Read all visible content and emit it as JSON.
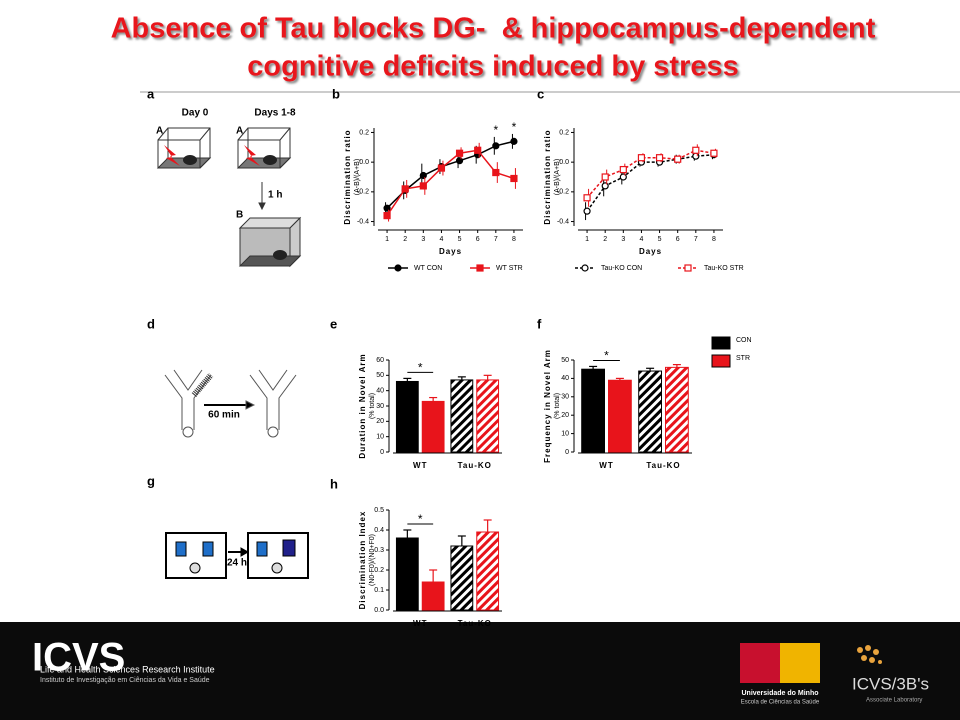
{
  "title": [
    "Absence of Tau blocks DG-  & hippocampus-dependent",
    "cognitive deficits induced by stress"
  ],
  "panels": [
    "a",
    "b",
    "c",
    "d",
    "e",
    "f",
    "g",
    "h"
  ],
  "diagrams": {
    "day0": "Day 0",
    "days": "Days 1-8",
    "ctxA1": "A",
    "ctxA2": "A",
    "ctxB": "B",
    "delay1": "1 h",
    "delay2": "60 min",
    "delay3": "24 h"
  },
  "footer": {
    "logo": "ICVS",
    "institute": "Life and Health Sciences Research Institute",
    "institute_pt": "Instituto de Investigação em Ciências da Vida e Saúde",
    "university": "Universidade do Minho",
    "school": "Escola de Ciências da Saúde",
    "lab": "ICVS/3B's",
    "lab_note": "Associate Laboratory"
  },
  "chart_data": [
    {
      "type": "line",
      "y_label": [
        "Discrimination ratio",
        "(A-B)/(A+B)"
      ],
      "x_label": "Days",
      "x": [
        1,
        2,
        3,
        4,
        5,
        6,
        7,
        8
      ],
      "xlim": [
        0.5,
        8.5
      ],
      "ylim": [
        -0.43,
        0.23
      ],
      "yticks": [
        -0.4,
        -0.2,
        {
          "value": 0,
          "label": "0.0"
        },
        0.2
      ],
      "series": [
        {
          "name": "WT CON",
          "color": "#000000",
          "marker": "circle",
          "dashed": false,
          "values": [
            -0.31,
            -0.19,
            -0.09,
            -0.03,
            0.01,
            0.05,
            0.11,
            0.14
          ],
          "errors": [
            0.04,
            0.06,
            0.08,
            0.05,
            0.05,
            0.06,
            0.06,
            0.05
          ]
        },
        {
          "name": "WT STR",
          "color": "#e8141b",
          "marker": "square",
          "dashed": false,
          "values": [
            -0.36,
            -0.18,
            -0.16,
            -0.04,
            0.06,
            0.08,
            -0.07,
            -0.11
          ],
          "errors": [
            0.04,
            0.06,
            0.06,
            0.05,
            0.04,
            0.05,
            0.07,
            0.07
          ]
        }
      ],
      "annotations": [
        {
          "text": "*",
          "x": 7
        },
        {
          "text": "*",
          "x": 8
        }
      ]
    },
    {
      "type": "line",
      "y_label": [
        "Discrimination ratio",
        "(A-B)/(A+B)"
      ],
      "x_label": "Days",
      "x": [
        1,
        2,
        3,
        4,
        5,
        6,
        7,
        8
      ],
      "xlim": [
        0.5,
        8.5
      ],
      "ylim": [
        -0.43,
        0.23
      ],
      "yticks": [
        -0.4,
        -0.2,
        {
          "value": 0,
          "label": "0.0"
        },
        0.2
      ],
      "series": [
        {
          "name": "Tau-KO CON",
          "color": "#000000",
          "marker": "circle",
          "dashed": true,
          "values": [
            -0.33,
            -0.16,
            -0.1,
            0.0,
            0.0,
            0.02,
            0.04,
            0.05
          ],
          "errors": [
            0.06,
            0.07,
            0.05,
            0.03,
            0.03,
            0.03,
            0.03,
            0.03
          ]
        },
        {
          "name": "Tau-KO STR",
          "color": "#e8141b",
          "marker": "square",
          "dashed": true,
          "values": [
            -0.24,
            -0.1,
            -0.05,
            0.03,
            0.03,
            0.02,
            0.08,
            0.06
          ],
          "errors": [
            0.06,
            0.05,
            0.04,
            0.03,
            0.03,
            0.03,
            0.04,
            0.03
          ]
        }
      ],
      "annotations": []
    },
    {
      "type": "bar",
      "y_label": [
        "Duration in Novel Arm",
        "(% total)"
      ],
      "categories": [
        "WT",
        "Tau-KO"
      ],
      "hatch": [
        false,
        true
      ],
      "ylim": [
        0,
        60
      ],
      "yticks": [
        0,
        10,
        20,
        30,
        40,
        50,
        60
      ],
      "series": [
        {
          "color": "#000000",
          "values": [
            46,
            47
          ],
          "errors": [
            2,
            2
          ]
        },
        {
          "color": "#e8141b",
          "values": [
            33,
            47
          ],
          "errors": [
            2.5,
            3
          ]
        }
      ],
      "annotations": [
        {
          "text": "*",
          "category": 0
        }
      ]
    },
    {
      "type": "bar",
      "y_label": [
        "Frequency in Novel Arm",
        "(% total)"
      ],
      "categories": [
        "WT",
        "Tau-KO"
      ],
      "hatch": [
        false,
        true
      ],
      "ylim": [
        0,
        50
      ],
      "yticks": [
        0,
        10,
        20,
        30,
        40,
        50
      ],
      "legend": "right",
      "series": [
        {
          "name": "CON",
          "color": "#000000",
          "values": [
            45,
            44
          ],
          "errors": [
            1.5,
            1.5
          ]
        },
        {
          "name": "STR",
          "color": "#e8141b",
          "values": [
            39,
            46
          ],
          "errors": [
            1,
            1.5
          ]
        }
      ],
      "annotations": [
        {
          "text": "*",
          "category": 0
        }
      ]
    },
    {
      "type": "bar",
      "y_label": [
        "Discrimination Index",
        "(N0-F0)/(N0+F0)"
      ],
      "categories": [
        "WT",
        "Tau-KO"
      ],
      "hatch": [
        false,
        true
      ],
      "ylim": [
        0,
        0.5
      ],
      "yticks": [
        {
          "value": 0,
          "label": "0.0"
        },
        0.1,
        0.2,
        0.3,
        0.4,
        0.5
      ],
      "series": [
        {
          "color": "#000000",
          "values": [
            0.36,
            0.32
          ],
          "errors": [
            0.04,
            0.05
          ]
        },
        {
          "color": "#e8141b",
          "values": [
            0.14,
            0.39
          ],
          "errors": [
            0.06,
            0.06
          ]
        }
      ],
      "annotations": [
        {
          "text": "*",
          "category": 0
        }
      ]
    }
  ]
}
